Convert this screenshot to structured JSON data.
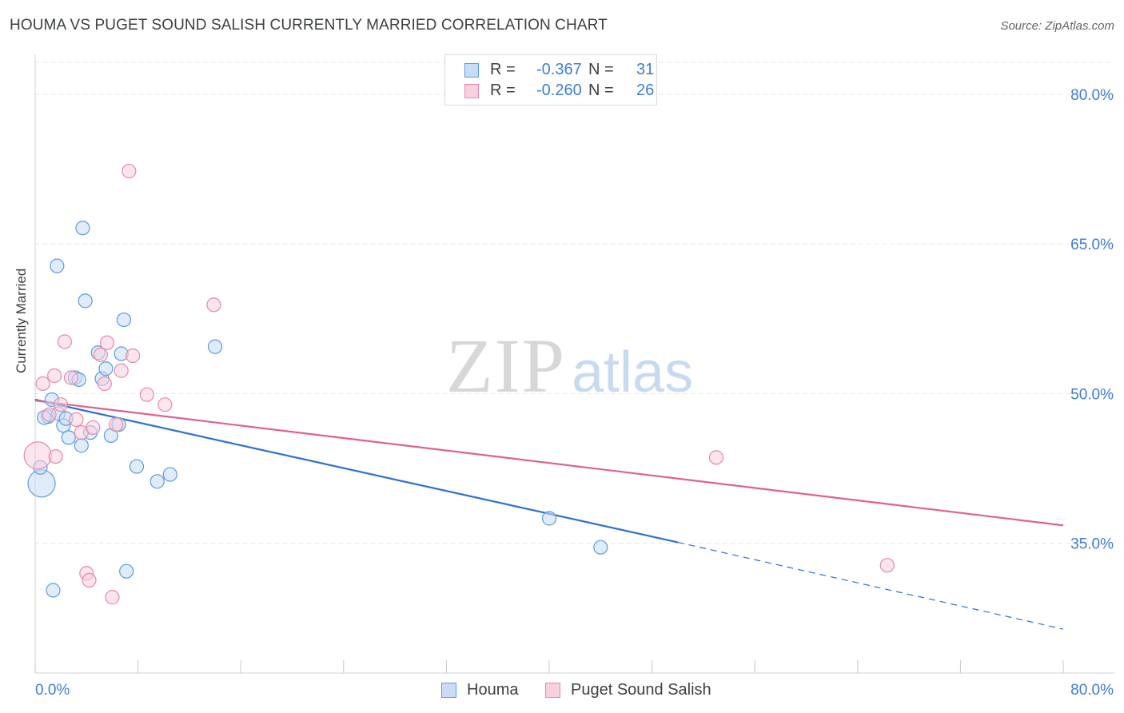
{
  "title": "HOUMA VS PUGET SOUND SALISH CURRENTLY MARRIED CORRELATION CHART",
  "source": "Source: ZipAtlas.com",
  "watermark": {
    "zip": "ZIP",
    "atlas": "atlas"
  },
  "colors": {
    "houma": "#5b9be0",
    "houma_fill": "#c9dcf6",
    "houma_line": "#2e6fd0",
    "puget": "#e889a8",
    "puget_fill": "#f9d0dd",
    "puget_line": "#e0608f",
    "tick_label": "#3f7ed3"
  },
  "legend": {
    "rows": [
      {
        "r_label": "R =",
        "r_value": "-0.367",
        "n_label": "N =",
        "n_value": "31"
      },
      {
        "r_label": "R =",
        "r_value": "-0.260",
        "n_label": "N =",
        "n_value": "26"
      }
    ]
  },
  "chart_data": {
    "type": "scatter",
    "title": "HOUMA VS PUGET SOUND SALISH CURRENTLY MARRIED CORRELATION CHART",
    "xlabel": "",
    "ylabel": "Currently Married",
    "xlim": [
      0,
      80
    ],
    "ylim": [
      22,
      84
    ],
    "x_tick_labels": [
      "0.0%",
      "80.0%"
    ],
    "y_ticks": [
      35,
      50,
      65,
      80
    ],
    "y_tick_labels": [
      "35.0%",
      "50.0%",
      "65.0%",
      "80.0%"
    ],
    "grid": true,
    "series": [
      {
        "name": "Houma",
        "R": -0.367,
        "N": 31,
        "points": [
          {
            "x": 0.5,
            "y": 41.0,
            "big": true
          },
          {
            "x": 1.0,
            "y": 47.7
          },
          {
            "x": 1.3,
            "y": 49.4
          },
          {
            "x": 1.4,
            "y": 30.3
          },
          {
            "x": 1.7,
            "y": 62.8
          },
          {
            "x": 1.8,
            "y": 48.0
          },
          {
            "x": 2.2,
            "y": 46.8
          },
          {
            "x": 2.4,
            "y": 47.5
          },
          {
            "x": 2.6,
            "y": 45.6
          },
          {
            "x": 3.1,
            "y": 51.6
          },
          {
            "x": 3.4,
            "y": 51.4
          },
          {
            "x": 3.6,
            "y": 44.8
          },
          {
            "x": 3.7,
            "y": 66.6
          },
          {
            "x": 3.9,
            "y": 59.3
          },
          {
            "x": 4.3,
            "y": 46.1
          },
          {
            "x": 4.9,
            "y": 54.1
          },
          {
            "x": 5.2,
            "y": 51.5
          },
          {
            "x": 5.5,
            "y": 52.5
          },
          {
            "x": 5.9,
            "y": 45.8
          },
          {
            "x": 6.5,
            "y": 46.9
          },
          {
            "x": 6.9,
            "y": 57.4
          },
          {
            "x": 6.7,
            "y": 54.0
          },
          {
            "x": 7.1,
            "y": 32.2
          },
          {
            "x": 7.9,
            "y": 42.7
          },
          {
            "x": 9.5,
            "y": 41.2
          },
          {
            "x": 10.5,
            "y": 41.9
          },
          {
            "x": 14.0,
            "y": 54.7
          },
          {
            "x": 40.0,
            "y": 37.5
          },
          {
            "x": 44.0,
            "y": 34.6
          },
          {
            "x": 0.7,
            "y": 47.6
          },
          {
            "x": 0.4,
            "y": 42.6
          }
        ],
        "trend": {
          "x0": 0,
          "y0": 49.4,
          "x1": 50,
          "y1": 35.1,
          "dash_x1": 80,
          "dash_y1": 26.4
        }
      },
      {
        "name": "Puget Sound Salish",
        "R": -0.26,
        "N": 26,
        "points": [
          {
            "x": 0.2,
            "y": 43.8,
            "big": true
          },
          {
            "x": 0.6,
            "y": 51.0
          },
          {
            "x": 1.1,
            "y": 47.9
          },
          {
            "x": 1.5,
            "y": 51.8
          },
          {
            "x": 1.6,
            "y": 43.7
          },
          {
            "x": 2.0,
            "y": 48.9
          },
          {
            "x": 2.3,
            "y": 55.2
          },
          {
            "x": 2.8,
            "y": 51.6
          },
          {
            "x": 3.2,
            "y": 47.4
          },
          {
            "x": 3.6,
            "y": 46.1
          },
          {
            "x": 4.0,
            "y": 32.0
          },
          {
            "x": 4.2,
            "y": 31.3
          },
          {
            "x": 4.5,
            "y": 46.6
          },
          {
            "x": 5.1,
            "y": 53.9
          },
          {
            "x": 5.4,
            "y": 51.0
          },
          {
            "x": 5.6,
            "y": 55.1
          },
          {
            "x": 6.0,
            "y": 29.6
          },
          {
            "x": 6.3,
            "y": 46.9
          },
          {
            "x": 6.7,
            "y": 52.3
          },
          {
            "x": 7.3,
            "y": 72.3
          },
          {
            "x": 7.6,
            "y": 53.8
          },
          {
            "x": 8.7,
            "y": 49.9
          },
          {
            "x": 10.1,
            "y": 48.9
          },
          {
            "x": 13.9,
            "y": 58.9
          },
          {
            "x": 53.0,
            "y": 43.6
          },
          {
            "x": 66.3,
            "y": 32.8
          }
        ],
        "trend": {
          "x0": 0,
          "y0": 49.3,
          "x1": 80,
          "y1": 36.8
        }
      }
    ]
  }
}
